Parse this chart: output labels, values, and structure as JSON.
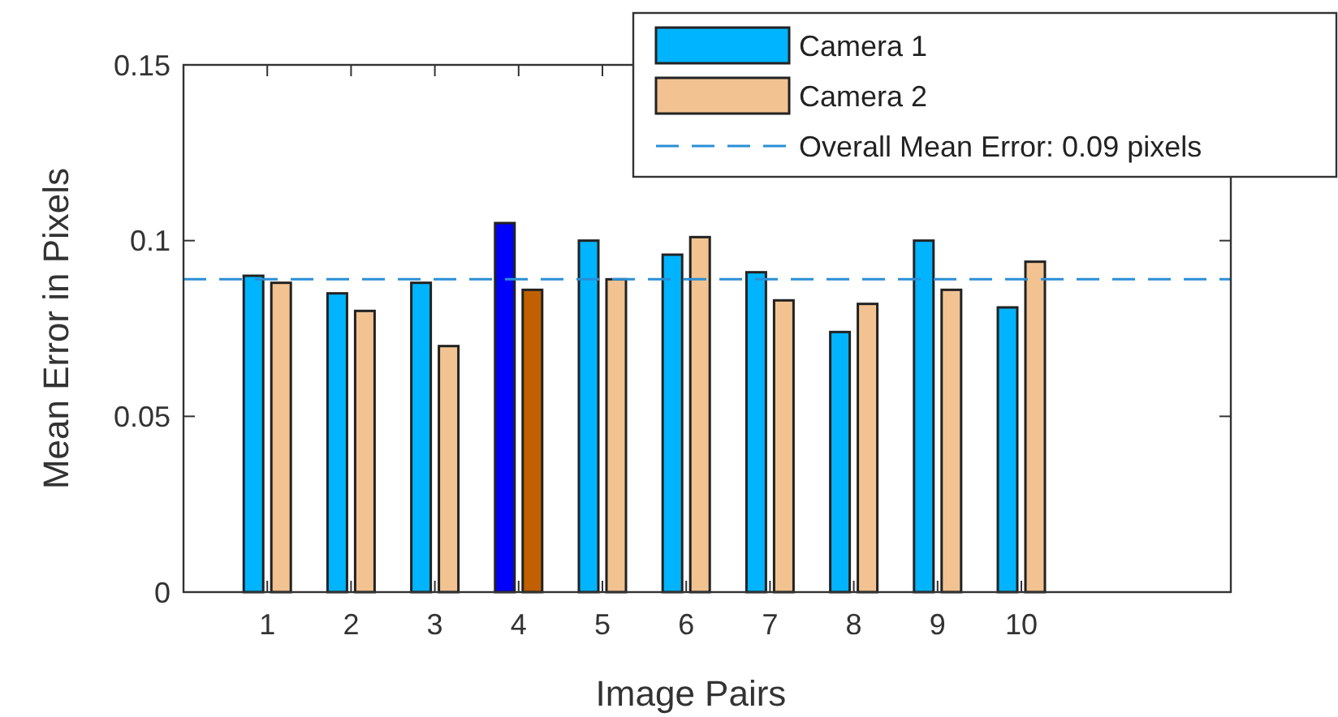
{
  "chart_data": {
    "type": "bar",
    "xlabel": "Image Pairs",
    "ylabel": "Mean Error in Pixels",
    "x": [
      1,
      2,
      3,
      4,
      5,
      6,
      7,
      8,
      9,
      10
    ],
    "xlim": [
      0,
      12.5
    ],
    "xticks": [
      1,
      2,
      3,
      4,
      5,
      6,
      7,
      8,
      9,
      10
    ],
    "ylim": [
      0,
      0.15
    ],
    "yticks": [
      0,
      0.05,
      0.1,
      0.15
    ],
    "series": [
      {
        "name": "Camera 1",
        "color": "#00b4ff",
        "colors": [
          "#00b4ff",
          "#00b4ff",
          "#00b4ff",
          "#0000ff",
          "#00b4ff",
          "#00b4ff",
          "#00b4ff",
          "#00b4ff",
          "#00b4ff",
          "#00b4ff"
        ],
        "values": [
          0.09,
          0.085,
          0.088,
          0.105,
          0.1,
          0.096,
          0.091,
          0.074,
          0.1,
          0.081
        ]
      },
      {
        "name": "Camera 2",
        "color": "#f2c391",
        "colors": [
          "#f2c391",
          "#f2c391",
          "#f2c391",
          "#c06000",
          "#f2c391",
          "#f2c391",
          "#f2c391",
          "#f2c391",
          "#f2c391",
          "#f2c391"
        ],
        "values": [
          0.088,
          0.08,
          0.07,
          0.086,
          0.089,
          0.101,
          0.083,
          0.082,
          0.086,
          0.094
        ]
      }
    ],
    "ref_lines": [
      {
        "axis": "y",
        "value": 0.089,
        "label": "Overall Mean Error: 0.09 pixels",
        "color": "#2a8fd6",
        "line_style": "dashed"
      }
    ],
    "legend": "top right",
    "grid": false
  }
}
